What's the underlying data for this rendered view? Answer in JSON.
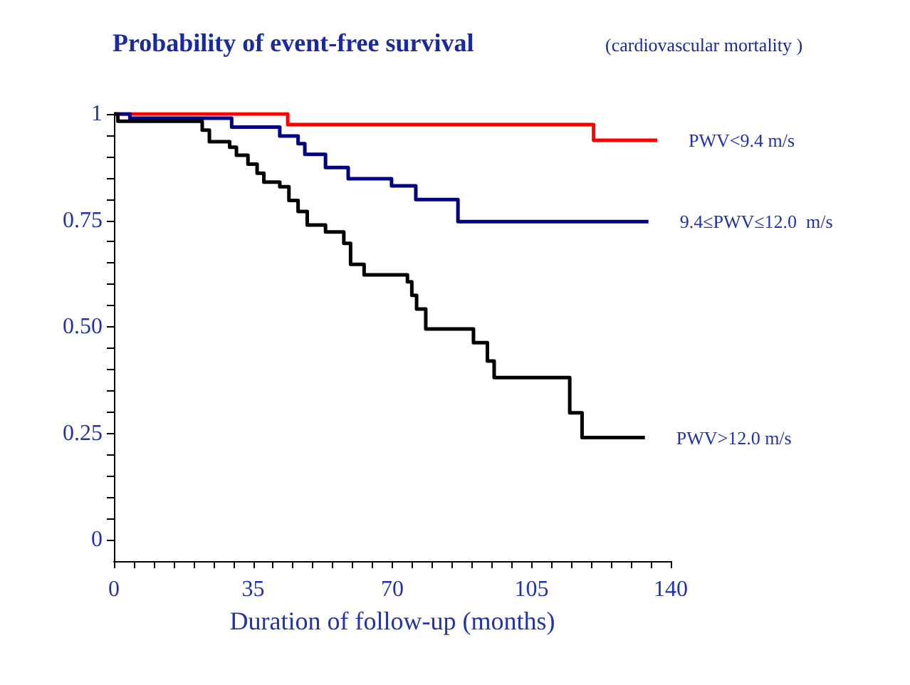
{
  "chart_data": {
    "type": "step",
    "title": "Probability of event-free survival",
    "subtitle": "(cardiovascular mortality )",
    "xlabel": "Duration of follow-up (months)",
    "xlim": [
      0,
      140
    ],
    "xticks": [
      0,
      {
        "value": 5,
        "label": null
      },
      {
        "value": 10,
        "label": null
      },
      {
        "value": 15,
        "label": null
      },
      {
        "value": 20,
        "label": null
      },
      {
        "value": 25,
        "label": null
      },
      {
        "value": 30,
        "label": null
      },
      35,
      {
        "value": 40,
        "label": null
      },
      {
        "value": 45,
        "label": null
      },
      {
        "value": 50,
        "label": null
      },
      {
        "value": 55,
        "label": null
      },
      {
        "value": 60,
        "label": null
      },
      {
        "value": 65,
        "label": null
      },
      70,
      {
        "value": 75,
        "label": null
      },
      {
        "value": 80,
        "label": null
      },
      {
        "value": 85,
        "label": null
      },
      {
        "value": 90,
        "label": null
      },
      {
        "value": 95,
        "label": null
      },
      {
        "value": 100,
        "label": null
      },
      105,
      {
        "value": 110,
        "label": null
      },
      {
        "value": 115,
        "label": null
      },
      {
        "value": 120,
        "label": null
      },
      {
        "value": 125,
        "label": null
      },
      {
        "value": 130,
        "label": null
      },
      {
        "value": 135,
        "label": null
      },
      140
    ],
    "ylim": [
      -0.05,
      1
    ],
    "yticks": [
      0,
      {
        "value": 0.05,
        "label": null
      },
      {
        "value": 0.1,
        "label": null
      },
      {
        "value": 0.15,
        "label": null
      },
      {
        "value": 0.2,
        "label": null
      },
      {
        "value": 0.25,
        "label": "0.25"
      },
      {
        "value": 0.3,
        "label": null
      },
      {
        "value": 0.35,
        "label": null
      },
      {
        "value": 0.4,
        "label": null
      },
      {
        "value": 0.45,
        "label": null
      },
      {
        "value": 0.5,
        "label": "0.50"
      },
      {
        "value": 0.55,
        "label": null
      },
      {
        "value": 0.6,
        "label": null
      },
      {
        "value": 0.65,
        "label": null
      },
      {
        "value": 0.7,
        "label": null
      },
      0.75,
      {
        "value": 0.8,
        "label": null
      },
      {
        "value": 0.85,
        "label": null
      },
      {
        "value": 0.9,
        "label": null
      },
      {
        "value": 0.95,
        "label": null
      },
      1
    ],
    "grid": false,
    "legend": false,
    "marker": "none",
    "line_style": "solid",
    "series": [
      {
        "name": "PWV<9.4 m/s",
        "color": "#ff0000",
        "x": [
          0,
          29.6,
          43.7,
          120.6,
          136.6
        ],
        "values": [
          1,
          1,
          0.975,
          0.938,
          0.938
        ]
      },
      {
        "name": "9.4≤PWV≤12.0  m/s",
        "color": "#000080",
        "x": [
          0,
          4,
          29.6,
          41.7,
          46.3,
          48,
          53.2,
          58.9,
          69.8,
          75.9,
          86.5,
          134.4
        ],
        "values": [
          1,
          0.99,
          0.969,
          0.948,
          0.93,
          0.905,
          0.874,
          0.848,
          0.831,
          0.799,
          0.747,
          0.747
        ]
      },
      {
        "name": "PWV>12.0 m/s",
        "color": "#000000",
        "x": [
          0,
          1,
          18.8,
          22.2,
          24,
          29.1,
          30.8,
          33.7,
          36,
          37.7,
          41.7,
          44,
          46.3,
          48.6,
          53.2,
          57.8,
          59.5,
          62.9,
          73.8,
          74.9,
          76.1,
          78.4,
          90.4,
          93.9,
          95.6,
          114.6,
          117.7,
          133.5
        ],
        "values": [
          1,
          0.983,
          0.983,
          0.962,
          0.935,
          0.922,
          0.903,
          0.882,
          0.861,
          0.84,
          0.829,
          0.797,
          0.771,
          0.739,
          0.723,
          0.696,
          0.647,
          0.622,
          0.606,
          0.574,
          0.542,
          0.495,
          0.463,
          0.42,
          0.381,
          0.298,
          0.24,
          0.24
        ]
      }
    ]
  }
}
